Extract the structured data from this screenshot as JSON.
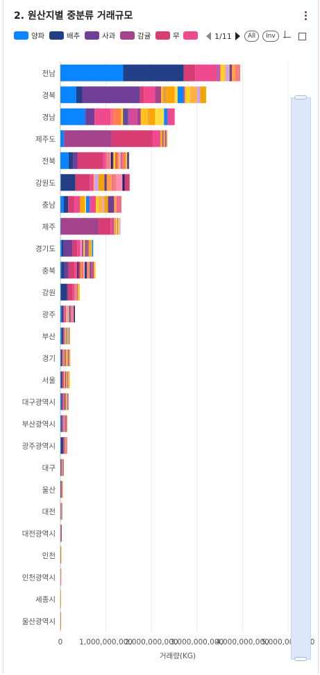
{
  "header": {
    "title": "2. 원산지별 중분류 거래규모"
  },
  "legend": {
    "items": [
      {
        "label": "양파",
        "color": "#0a84ff"
      },
      {
        "label": "배추",
        "color": "#233f85"
      },
      {
        "label": "사과",
        "color": "#6f3f98"
      },
      {
        "label": "감귤",
        "color": "#a3438e"
      },
      {
        "label": "무",
        "color": "#d73c72"
      },
      {
        "label": "",
        "color": "#f04a8e"
      }
    ],
    "page": "1/11",
    "all_label": "All",
    "inv_label": "Inv"
  },
  "chart_data": {
    "type": "bar",
    "orientation": "horizontal",
    "stacked": true,
    "title": "",
    "xlabel": "거래량(KG)",
    "ylabel": "",
    "xlim": [
      0,
      5000000000
    ],
    "xticks": [
      "0",
      "1,000,000,000",
      "2,000,000,000",
      "3,000,000,000",
      "4,000,000,000",
      "5,000,000,000"
    ],
    "categories": [
      "전남",
      "경북",
      "경남",
      "제주도",
      "전북",
      "강원도",
      "충남",
      "제주",
      "경기도",
      "충북",
      "강원",
      "광주",
      "부산",
      "경기",
      "서울",
      "대구광역시",
      "부산광역시",
      "광주광역시",
      "대구",
      "울산",
      "대전",
      "대전광역시",
      "인천",
      "인천광역시",
      "세종시",
      "울산광역시"
    ],
    "segment_colors": [
      "#0a84ff",
      "#233f85",
      "#6f3f98",
      "#a3438e",
      "#d73c72",
      "#f04a8e",
      "#ff6b78",
      "#ff9e44",
      "#ffc21c",
      "#ffe600",
      "#ffd21f",
      "#ff7f50",
      "#f26b8a",
      "#e8a03a",
      "#ff5c5c",
      "#ffb347",
      "#ffd700",
      "#f08080",
      "#ffa500",
      "#e9b000",
      "#c8a2ff",
      "#5b4da0",
      "#ff8fb2",
      "#ffdd44",
      "#ff99c8",
      "#f0a500",
      "#d14b9a",
      "#222266"
    ],
    "series": [
      {
        "name": "양파",
        "values": [
          1380000000,
          350000000,
          550000000,
          80000000,
          180000000,
          10000000,
          70000000,
          10000000,
          30000000,
          20000000,
          10000000,
          30000000,
          30000000,
          10000000,
          10000000,
          20000000,
          20000000,
          10000000,
          5000000,
          5000000,
          5000000,
          0,
          0,
          0,
          0,
          0
        ]
      },
      {
        "name": "배추",
        "values": [
          1330000000,
          130000000,
          0,
          0,
          100000000,
          320000000,
          100000000,
          0,
          40000000,
          70000000,
          140000000,
          30000000,
          30000000,
          20000000,
          30000000,
          20000000,
          20000000,
          50000000,
          5000000,
          5000000,
          0,
          0,
          0,
          0,
          0,
          0
        ]
      },
      {
        "name": "사과",
        "values": [
          0,
          1270000000,
          200000000,
          0,
          100000000,
          0,
          0,
          0,
          190000000,
          90000000,
          10000000,
          0,
          0,
          10000000,
          0,
          0,
          0,
          0,
          0,
          0,
          0,
          0,
          0,
          0,
          0,
          0
        ]
      },
      {
        "name": "감귤",
        "values": [
          0,
          0,
          0,
          1040000000,
          0,
          0,
          0,
          830000000,
          0,
          0,
          0,
          0,
          0,
          0,
          0,
          0,
          0,
          0,
          0,
          0,
          0,
          0,
          0,
          0,
          0,
          0
        ]
      },
      {
        "name": "무",
        "values": [
          250000000,
          80000000,
          0,
          900000000,
          550000000,
          320000000,
          140000000,
          260000000,
          110000000,
          130000000,
          110000000,
          20000000,
          20000000,
          10000000,
          20000000,
          20000000,
          10000000,
          20000000,
          10000000,
          5000000,
          0,
          0,
          0,
          0,
          0,
          0
        ]
      },
      {
        "name": "",
        "values": [
          490000000,
          250000000,
          350000000,
          180000000,
          60000000,
          80000000,
          120000000,
          50000000,
          70000000,
          60000000,
          40000000,
          20000000,
          20000000,
          10000000,
          20000000,
          20000000,
          20000000,
          20000000,
          10000000,
          10000000,
          5000000,
          5000000,
          5000000,
          5000000,
          2000000,
          1000000
        ]
      },
      {
        "name": "",
        "values": [
          500000000,
          1120000000,
          1410000000,
          150000000,
          520000000,
          790000000,
          910000000,
          170000000,
          280000000,
          400000000,
          110000000,
          220000000,
          110000000,
          160000000,
          130000000,
          100000000,
          80000000,
          50000000,
          40000000,
          20000000,
          25000000,
          20000000,
          10000000,
          5000000,
          4000000,
          3000000
        ]
      }
    ]
  }
}
